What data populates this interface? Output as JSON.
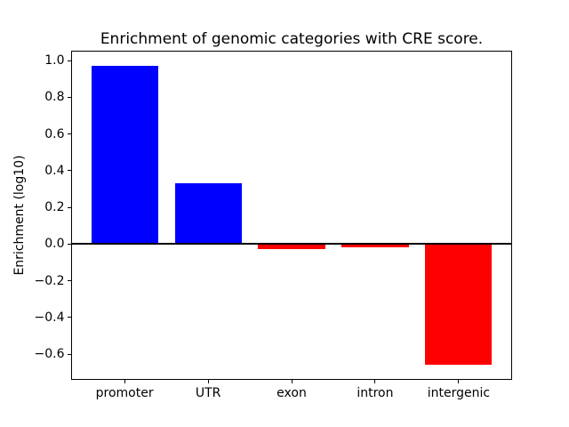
{
  "figure": {
    "background_color": "#ffffff",
    "text_color": "#000000",
    "axis_color": "#000000"
  },
  "chart_data": {
    "type": "bar",
    "title": "Enrichment of genomic categories with CRE score.",
    "ylabel": "Enrichment (log10)",
    "xlabel": "",
    "categories": [
      "promoter",
      "UTR",
      "exon",
      "intron",
      "intergenic"
    ],
    "values": [
      0.97,
      0.33,
      -0.025,
      -0.02,
      -0.66
    ],
    "bar_colors": [
      "#0000ff",
      "#0000ff",
      "#ff0000",
      "#ff0000",
      "#ff0000"
    ],
    "positive_color": "#0000ff",
    "negative_color": "#ff0000",
    "bar_width_fraction": 0.8,
    "yticks": [
      1.0,
      0.8,
      0.6,
      0.4,
      0.2,
      0.0,
      -0.2,
      -0.4,
      -0.6
    ],
    "ytick_labels": [
      "1.0",
      "0.8",
      "0.6",
      "0.4",
      "0.2",
      "0.0",
      "−0.2",
      "−0.4",
      "−0.6"
    ],
    "ylim": [
      -0.7415,
      1.0515
    ],
    "xlim": [
      -0.64,
      4.64
    ],
    "zero_line": {
      "value": 0.0,
      "color": "#000000",
      "thickness_px": 2
    },
    "grid": false,
    "legend": "none"
  }
}
